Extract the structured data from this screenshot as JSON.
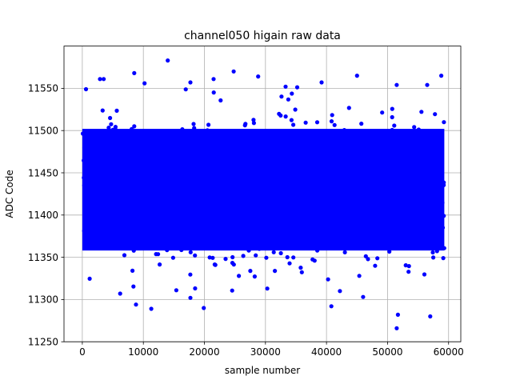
{
  "chart_data": {
    "type": "scatter",
    "title": "channel050 higain raw data",
    "xlabel": "sample number",
    "ylabel": "ADC Code",
    "xlim": [
      -3000,
      62000
    ],
    "ylim": [
      11250,
      11600
    ],
    "xticks": [
      0,
      10000,
      20000,
      30000,
      40000,
      50000,
      60000
    ],
    "yticks": [
      11250,
      11300,
      11350,
      11400,
      11450,
      11500,
      11550
    ],
    "grid": true,
    "color": "#0000ff",
    "series": [
      {
        "x_range": [
          0,
          59300
        ],
        "dense_band": [
          11350,
          11510
        ],
        "outliers": [
          {
            "x": 14000,
            "y": 11583
          },
          {
            "x": 8500,
            "y": 11568
          },
          {
            "x": 24800,
            "y": 11570
          },
          {
            "x": 28800,
            "y": 11564
          },
          {
            "x": 45000,
            "y": 11565
          },
          {
            "x": 58800,
            "y": 11565
          },
          {
            "x": 21500,
            "y": 11561
          },
          {
            "x": 10200,
            "y": 11556
          },
          {
            "x": 17700,
            "y": 11557
          },
          {
            "x": 39200,
            "y": 11557
          },
          {
            "x": 51500,
            "y": 11554
          },
          {
            "x": 56500,
            "y": 11554
          },
          {
            "x": 33300,
            "y": 11552
          },
          {
            "x": 3500,
            "y": 11561
          },
          {
            "x": 600,
            "y": 11549
          },
          {
            "x": 8800,
            "y": 11294
          },
          {
            "x": 11300,
            "y": 11289
          },
          {
            "x": 19900,
            "y": 11290
          },
          {
            "x": 17700,
            "y": 11302
          },
          {
            "x": 40800,
            "y": 11292
          },
          {
            "x": 46000,
            "y": 11303
          },
          {
            "x": 51700,
            "y": 11282
          },
          {
            "x": 51500,
            "y": 11266
          },
          {
            "x": 57000,
            "y": 11280
          },
          {
            "x": 6200,
            "y": 11307
          },
          {
            "x": 15400,
            "y": 11311
          },
          {
            "x": 42200,
            "y": 11310
          },
          {
            "x": 30300,
            "y": 11313
          }
        ]
      }
    ]
  }
}
